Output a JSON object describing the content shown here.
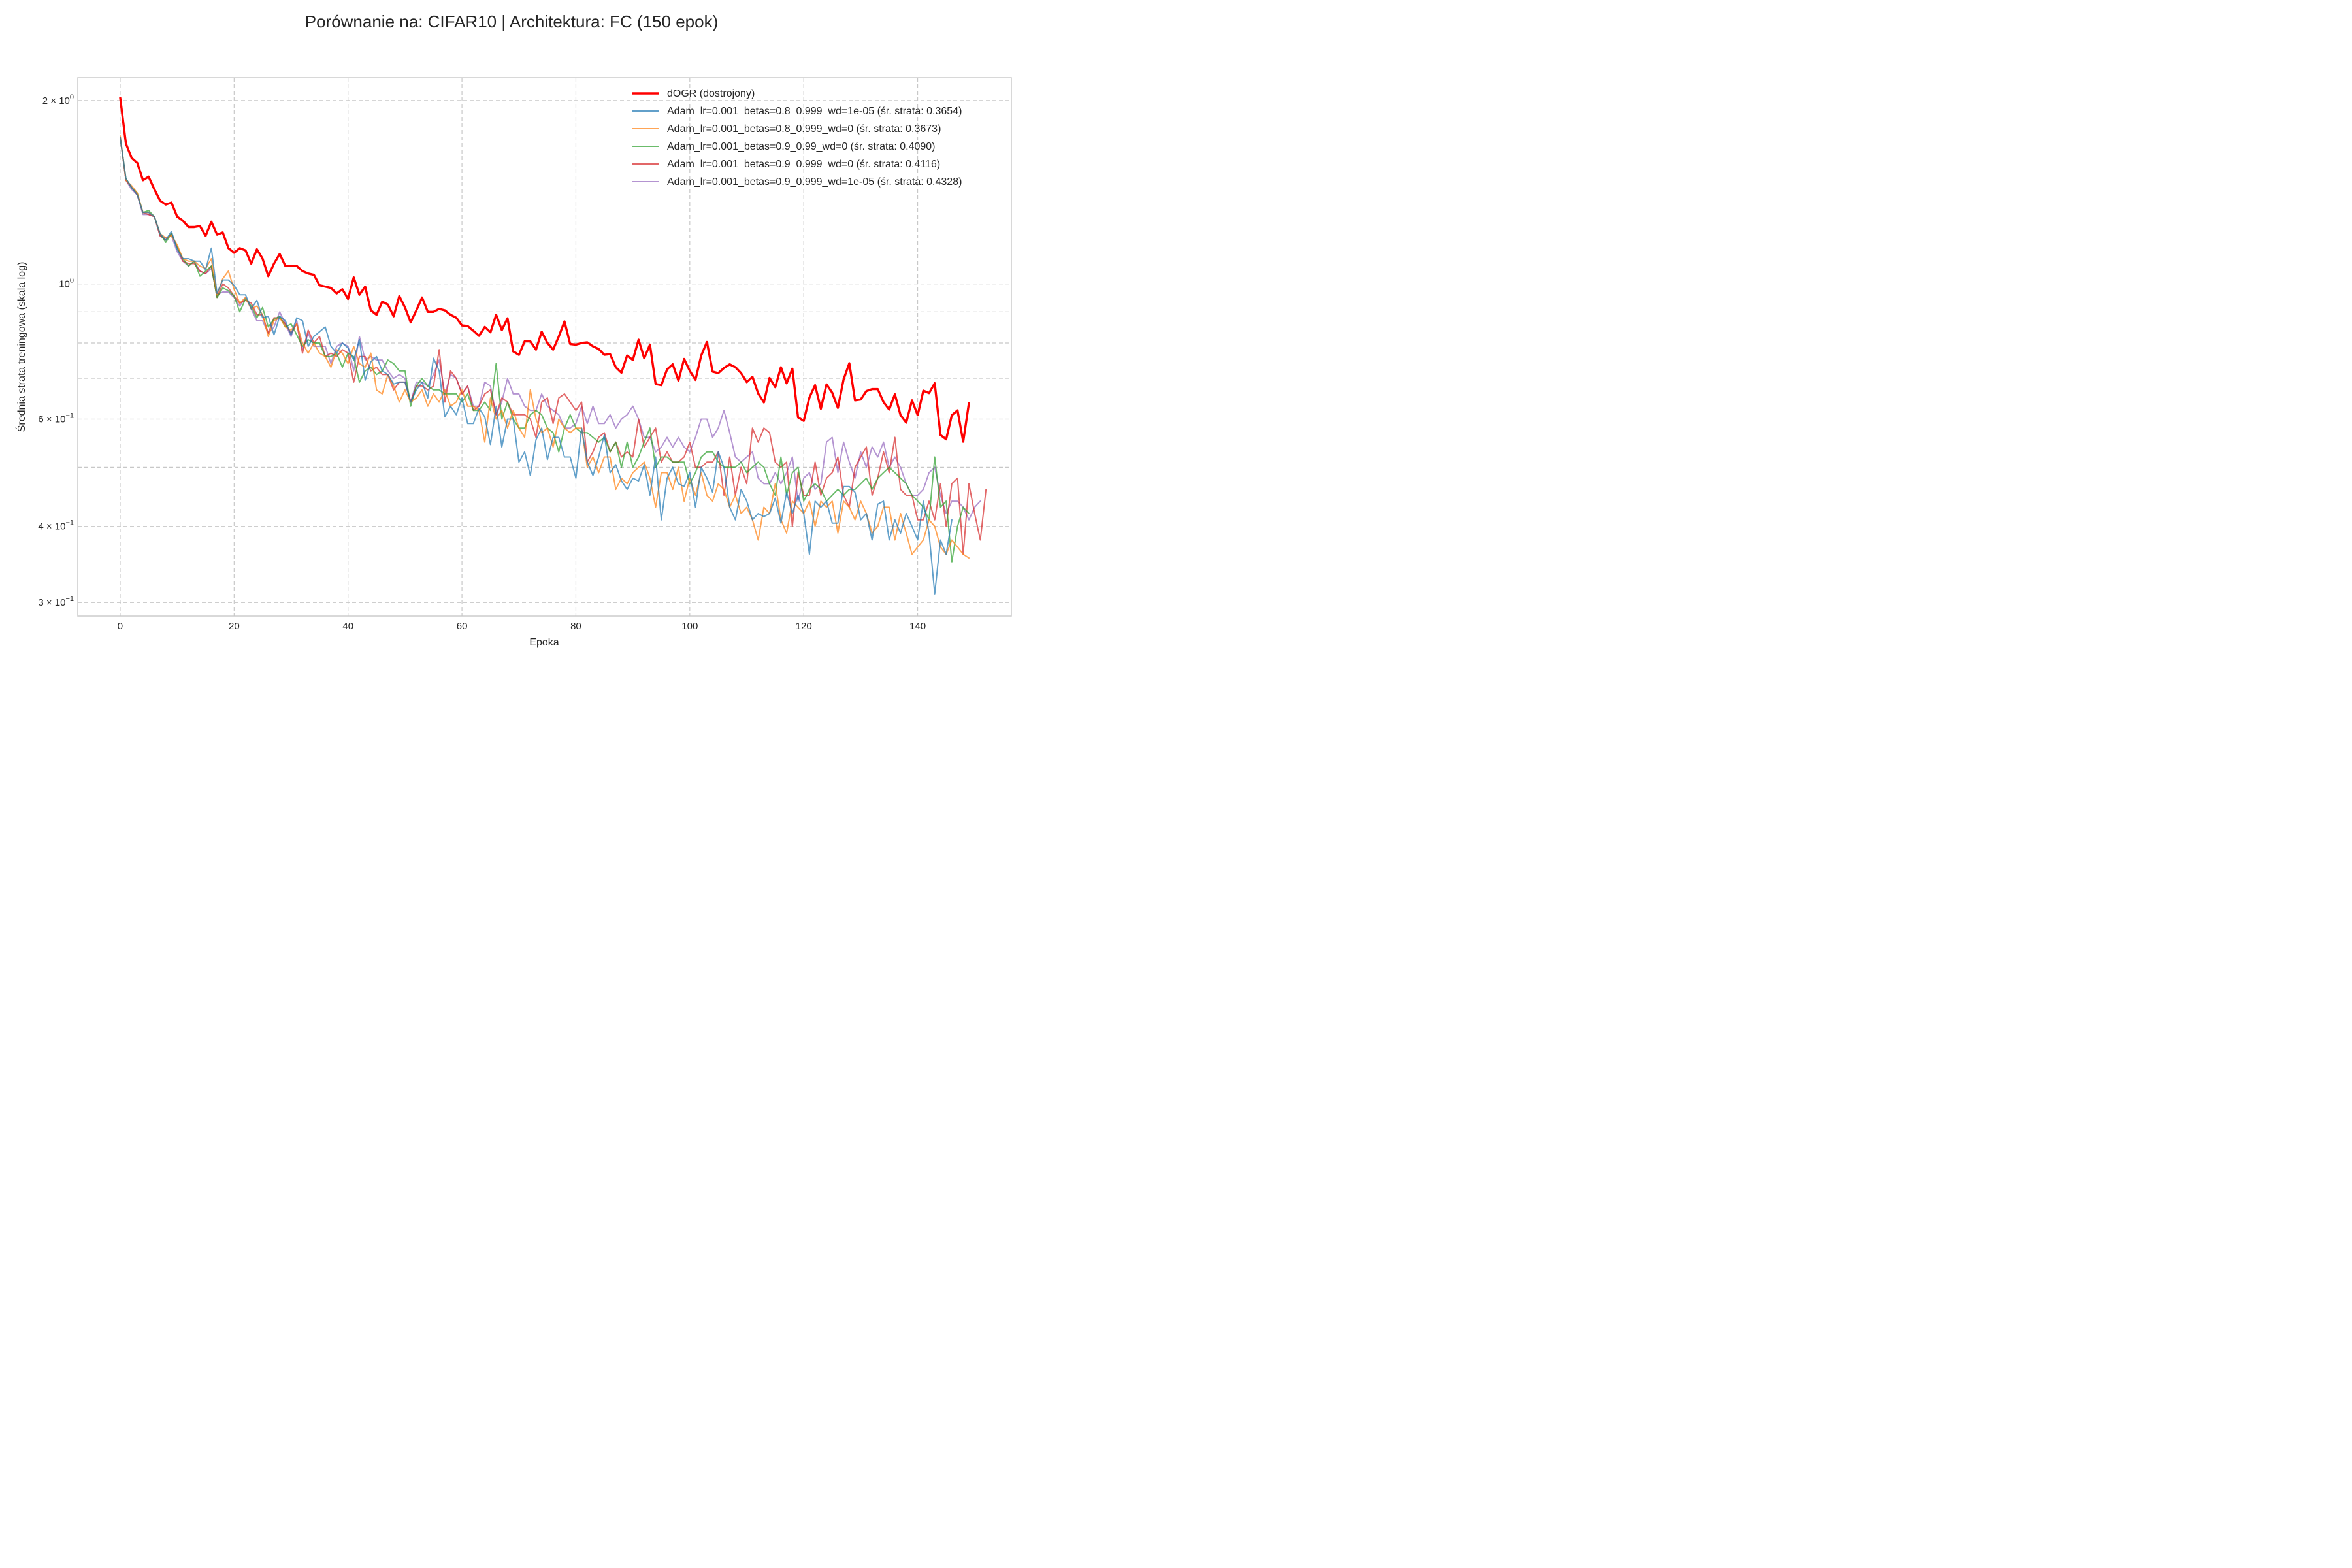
{
  "chart_data": {
    "type": "line",
    "title": "Porównanie na: CIFAR10 | Architektura: FC (150 epok)",
    "xlabel": "Epoka",
    "ylabel": "Średnia strata treningowa (skala log)",
    "yscale": "log",
    "xlim": [
      -7.45,
      156.45
    ],
    "ylim": [
      0.285,
      2.18
    ],
    "xticks": [
      0,
      20,
      40,
      60,
      80,
      100,
      120,
      140
    ],
    "xtick_labels": [
      "0",
      "20",
      "40",
      "60",
      "80",
      "100",
      "120",
      "140"
    ],
    "yticks_major": [
      1.0,
      2.0
    ],
    "ytick_major_labels": [
      {
        "base": "10",
        "exp": "0",
        "prefix": ""
      },
      {
        "base": "10",
        "exp": "0",
        "prefix": "2 × "
      }
    ],
    "yticks_minor": [
      0.3,
      0.4,
      0.5,
      0.6,
      0.7,
      0.8,
      0.9
    ],
    "ytick_minor_labels": [
      {
        "value": 0.3,
        "prefix": "3 × ",
        "base": "10",
        "exp": "−1"
      },
      {
        "value": 0.4,
        "prefix": "4 × ",
        "base": "10",
        "exp": "−1"
      },
      {
        "value": 0.6,
        "prefix": "6 × ",
        "base": "10",
        "exp": "−1"
      }
    ],
    "grid": true,
    "legend_position": "top-right",
    "series": [
      {
        "name": "dOGR (dostrojony)",
        "color": "#ff0000",
        "width": 3.4,
        "opacity": 1,
        "x_start": 0,
        "values": [
          2.02,
          1.7,
          1.61,
          1.58,
          1.48,
          1.5,
          1.43,
          1.37,
          1.35,
          1.36,
          1.29,
          1.27,
          1.24,
          1.24,
          1.245,
          1.2,
          1.265,
          1.205,
          1.215,
          1.145,
          1.125,
          1.145,
          1.135,
          1.08,
          1.14,
          1.1,
          1.03,
          1.08,
          1.12,
          1.07,
          1.07,
          1.07,
          1.05,
          1.04,
          1.035,
          0.995,
          0.99,
          0.985,
          0.965,
          0.98,
          0.945,
          1.025,
          0.96,
          0.99,
          0.905,
          0.89,
          0.935,
          0.925,
          0.885,
          0.955,
          0.915,
          0.865,
          0.905,
          0.95,
          0.9,
          0.9,
          0.91,
          0.905,
          0.89,
          0.88,
          0.855,
          0.853,
          0.838,
          0.822,
          0.85,
          0.833,
          0.89,
          0.84,
          0.878,
          0.775,
          0.765,
          0.805,
          0.805,
          0.78,
          0.835,
          0.8,
          0.78,
          0.82,
          0.868,
          0.797,
          0.795,
          0.8,
          0.802,
          0.79,
          0.782,
          0.765,
          0.767,
          0.73,
          0.715,
          0.763,
          0.75,
          0.81,
          0.755,
          0.795,
          0.685,
          0.682,
          0.724,
          0.738,
          0.694,
          0.753,
          0.72,
          0.696,
          0.763,
          0.803,
          0.718,
          0.714,
          0.728,
          0.738,
          0.73,
          0.714,
          0.69,
          0.704,
          0.661,
          0.639,
          0.701,
          0.677,
          0.73,
          0.687,
          0.726,
          0.604,
          0.596,
          0.651,
          0.682,
          0.624,
          0.684,
          0.663,
          0.626,
          0.697,
          0.741,
          0.644,
          0.646,
          0.667,
          0.672,
          0.672,
          0.64,
          0.622,
          0.659,
          0.609,
          0.592,
          0.644,
          0.609,
          0.668,
          0.662,
          0.687,
          0.565,
          0.556,
          0.609,
          0.62,
          0.551,
          0.637
        ]
      },
      {
        "name": "Adam_lr=0.001_betas=0.8_0.999_wd=1e-05 (śr. strata: 0.3654)",
        "color": "#1f77b4",
        "width": 2.0,
        "opacity": 0.7,
        "x_start": 0,
        "values": [
          1.74,
          1.49,
          1.44,
          1.4,
          1.31,
          1.31,
          1.29,
          1.21,
          1.18,
          1.22,
          1.14,
          1.1,
          1.1,
          1.09,
          1.09,
          1.055,
          1.145,
          0.965,
          1.015,
          1.015,
          0.995,
          0.96,
          0.96,
          0.91,
          0.94,
          0.88,
          0.885,
          0.825,
          0.885,
          0.87,
          0.825,
          0.88,
          0.87,
          0.79,
          0.82,
          0.835,
          0.85,
          0.79,
          0.77,
          0.8,
          0.785,
          0.75,
          0.81,
          0.695,
          0.745,
          0.76,
          0.72,
          0.71,
          0.685,
          0.69,
          0.69,
          0.64,
          0.67,
          0.69,
          0.65,
          0.755,
          0.72,
          0.605,
          0.63,
          0.61,
          0.65,
          0.59,
          0.59,
          0.625,
          0.605,
          0.545,
          0.63,
          0.54,
          0.6,
          0.6,
          0.51,
          0.53,
          0.485,
          0.555,
          0.58,
          0.515,
          0.56,
          0.56,
          0.52,
          0.52,
          0.48,
          0.58,
          0.51,
          0.485,
          0.52,
          0.565,
          0.49,
          0.505,
          0.475,
          0.46,
          0.48,
          0.475,
          0.505,
          0.45,
          0.52,
          0.41,
          0.48,
          0.5,
          0.47,
          0.465,
          0.49,
          0.43,
          0.5,
          0.48,
          0.455,
          0.53,
          0.5,
          0.43,
          0.41,
          0.46,
          0.44,
          0.41,
          0.42,
          0.415,
          0.42,
          0.445,
          0.405,
          0.455,
          0.42,
          0.45,
          0.42,
          0.36,
          0.44,
          0.43,
          0.44,
          0.405,
          0.405,
          0.465,
          0.465,
          0.455,
          0.41,
          0.42,
          0.38,
          0.435,
          0.44,
          0.38,
          0.41,
          0.39,
          0.42,
          0.4,
          0.38,
          0.44,
          0.39,
          0.31,
          0.38,
          0.36,
          0.41
        ]
      },
      {
        "name": "Adam_lr=0.001_betas=0.8_0.999_wd=0 (śr. strata: 0.3673)",
        "color": "#ff7f0e",
        "width": 2.0,
        "opacity": 0.7,
        "x_start": 0,
        "values": [
          1.75,
          1.48,
          1.45,
          1.41,
          1.31,
          1.31,
          1.29,
          1.21,
          1.19,
          1.2,
          1.16,
          1.1,
          1.09,
          1.09,
          1.07,
          1.06,
          1.1,
          0.96,
          1.02,
          1.05,
          0.98,
          0.93,
          0.95,
          0.91,
          0.92,
          0.89,
          0.82,
          0.87,
          0.88,
          0.85,
          0.84,
          0.86,
          0.8,
          0.77,
          0.8,
          0.77,
          0.76,
          0.73,
          0.78,
          0.77,
          0.74,
          0.79,
          0.74,
          0.73,
          0.77,
          0.67,
          0.66,
          0.71,
          0.68,
          0.64,
          0.67,
          0.64,
          0.65,
          0.67,
          0.63,
          0.66,
          0.64,
          0.67,
          0.63,
          0.64,
          0.67,
          0.63,
          0.63,
          0.62,
          0.55,
          0.65,
          0.6,
          0.62,
          0.58,
          0.62,
          0.58,
          0.56,
          0.67,
          0.6,
          0.57,
          0.58,
          0.54,
          0.6,
          0.58,
          0.57,
          0.58,
          0.58,
          0.5,
          0.52,
          0.49,
          0.52,
          0.52,
          0.46,
          0.48,
          0.47,
          0.49,
          0.5,
          0.51,
          0.48,
          0.43,
          0.49,
          0.49,
          0.46,
          0.5,
          0.44,
          0.48,
          0.45,
          0.49,
          0.45,
          0.44,
          0.47,
          0.46,
          0.43,
          0.45,
          0.42,
          0.43,
          0.41,
          0.38,
          0.43,
          0.42,
          0.47,
          0.41,
          0.39,
          0.44,
          0.43,
          0.42,
          0.44,
          0.4,
          0.44,
          0.43,
          0.44,
          0.39,
          0.44,
          0.43,
          0.41,
          0.44,
          0.42,
          0.39,
          0.4,
          0.43,
          0.43,
          0.38,
          0.42,
          0.39,
          0.36,
          0.37,
          0.38,
          0.41,
          0.4,
          0.37,
          0.36,
          0.38,
          0.37,
          0.36,
          0.355
        ]
      },
      {
        "name": "Adam_lr=0.001_betas=0.9_0.99_wd=0 (śr. strata: 0.4090)",
        "color": "#2ca02c",
        "width": 2.0,
        "opacity": 0.7,
        "x_start": 0,
        "values": [
          1.74,
          1.49,
          1.44,
          1.41,
          1.31,
          1.32,
          1.29,
          1.21,
          1.17,
          1.21,
          1.15,
          1.1,
          1.07,
          1.09,
          1.03,
          1.05,
          1.07,
          0.95,
          0.985,
          0.975,
          0.955,
          0.9,
          0.945,
          0.92,
          0.88,
          0.915,
          0.85,
          0.875,
          0.885,
          0.85,
          0.86,
          0.825,
          0.79,
          0.81,
          0.8,
          0.8,
          0.76,
          0.76,
          0.77,
          0.73,
          0.77,
          0.76,
          0.69,
          0.72,
          0.73,
          0.71,
          0.72,
          0.75,
          0.74,
          0.72,
          0.72,
          0.63,
          0.68,
          0.7,
          0.68,
          0.67,
          0.67,
          0.66,
          0.66,
          0.66,
          0.64,
          0.66,
          0.62,
          0.62,
          0.64,
          0.62,
          0.74,
          0.6,
          0.64,
          0.6,
          0.58,
          0.58,
          0.61,
          0.62,
          0.61,
          0.58,
          0.57,
          0.53,
          0.58,
          0.61,
          0.58,
          0.57,
          0.57,
          0.56,
          0.55,
          0.56,
          0.53,
          0.55,
          0.5,
          0.55,
          0.5,
          0.52,
          0.55,
          0.58,
          0.5,
          0.52,
          0.52,
          0.51,
          0.51,
          0.51,
          0.47,
          0.49,
          0.52,
          0.53,
          0.53,
          0.51,
          0.5,
          0.5,
          0.5,
          0.51,
          0.49,
          0.5,
          0.51,
          0.5,
          0.47,
          0.45,
          0.52,
          0.45,
          0.49,
          0.5,
          0.44,
          0.46,
          0.47,
          0.46,
          0.44,
          0.45,
          0.46,
          0.45,
          0.46,
          0.46,
          0.47,
          0.48,
          0.46,
          0.48,
          0.49,
          0.5,
          0.49,
          0.48,
          0.47,
          0.45,
          0.44,
          0.43,
          0.41,
          0.52,
          0.43,
          0.44,
          0.35,
          0.4,
          0.43,
          0.42
        ]
      },
      {
        "name": "Adam_lr=0.001_betas=0.9_0.999_wd=0 (śr. strata: 0.4116)",
        "color": "#d62728",
        "width": 2.0,
        "opacity": 0.7,
        "x_start": 0,
        "values": [
          1.74,
          1.48,
          1.44,
          1.4,
          1.31,
          1.3,
          1.29,
          1.2,
          1.18,
          1.21,
          1.15,
          1.09,
          1.08,
          1.08,
          1.05,
          1.04,
          1.07,
          0.95,
          1.0,
          0.985,
          0.955,
          0.93,
          0.94,
          0.93,
          0.89,
          0.89,
          0.83,
          0.88,
          0.88,
          0.86,
          0.83,
          0.86,
          0.77,
          0.84,
          0.8,
          0.82,
          0.76,
          0.77,
          0.76,
          0.78,
          0.77,
          0.69,
          0.76,
          0.76,
          0.72,
          0.73,
          0.71,
          0.71,
          0.67,
          0.69,
          0.69,
          0.64,
          0.68,
          0.68,
          0.67,
          0.68,
          0.78,
          0.64,
          0.72,
          0.7,
          0.66,
          0.68,
          0.62,
          0.63,
          0.66,
          0.67,
          0.61,
          0.65,
          0.64,
          0.61,
          0.61,
          0.61,
          0.6,
          0.56,
          0.64,
          0.65,
          0.59,
          0.65,
          0.66,
          0.64,
          0.62,
          0.64,
          0.51,
          0.53,
          0.56,
          0.57,
          0.53,
          0.55,
          0.52,
          0.53,
          0.52,
          0.6,
          0.54,
          0.56,
          0.58,
          0.51,
          0.53,
          0.51,
          0.51,
          0.52,
          0.55,
          0.5,
          0.5,
          0.51,
          0.51,
          0.53,
          0.45,
          0.52,
          0.45,
          0.5,
          0.47,
          0.58,
          0.55,
          0.58,
          0.57,
          0.51,
          0.5,
          0.51,
          0.4,
          0.49,
          0.45,
          0.45,
          0.51,
          0.45,
          0.48,
          0.49,
          0.52,
          0.45,
          0.43,
          0.5,
          0.52,
          0.54,
          0.45,
          0.48,
          0.53,
          0.49,
          0.56,
          0.46,
          0.45,
          0.45,
          0.41,
          0.41,
          0.44,
          0.41,
          0.47,
          0.4,
          0.47,
          0.48,
          0.36,
          0.47,
          0.42,
          0.38,
          0.46
        ]
      },
      {
        "name": "Adam_lr=0.001_betas=0.9_0.999_wd=1e-05 (śr. strata: 0.4328)",
        "color": "#9467bd",
        "width": 2.0,
        "opacity": 0.7,
        "x_start": 0,
        "values": [
          1.74,
          1.48,
          1.43,
          1.4,
          1.3,
          1.3,
          1.29,
          1.2,
          1.19,
          1.2,
          1.13,
          1.09,
          1.07,
          1.09,
          1.05,
          1.04,
          1.06,
          0.96,
          0.97,
          0.97,
          0.95,
          0.92,
          0.95,
          0.91,
          0.87,
          0.87,
          0.83,
          0.85,
          0.9,
          0.86,
          0.82,
          0.87,
          0.78,
          0.83,
          0.79,
          0.79,
          0.79,
          0.74,
          0.79,
          0.8,
          0.79,
          0.72,
          0.82,
          0.75,
          0.76,
          0.75,
          0.75,
          0.72,
          0.7,
          0.71,
          0.7,
          0.64,
          0.69,
          0.69,
          0.68,
          0.71,
          0.75,
          0.66,
          0.71,
          0.7,
          0.66,
          0.68,
          0.63,
          0.63,
          0.69,
          0.68,
          0.61,
          0.64,
          0.7,
          0.66,
          0.66,
          0.63,
          0.62,
          0.62,
          0.66,
          0.63,
          0.62,
          0.61,
          0.58,
          0.58,
          0.59,
          0.63,
          0.59,
          0.63,
          0.59,
          0.59,
          0.61,
          0.58,
          0.6,
          0.61,
          0.63,
          0.6,
          0.56,
          0.56,
          0.53,
          0.54,
          0.56,
          0.54,
          0.56,
          0.54,
          0.53,
          0.56,
          0.6,
          0.6,
          0.56,
          0.58,
          0.62,
          0.57,
          0.52,
          0.51,
          0.52,
          0.53,
          0.48,
          0.47,
          0.47,
          0.49,
          0.47,
          0.49,
          0.52,
          0.44,
          0.48,
          0.49,
          0.46,
          0.47,
          0.55,
          0.56,
          0.49,
          0.55,
          0.51,
          0.48,
          0.53,
          0.5,
          0.54,
          0.52,
          0.55,
          0.5,
          0.52,
          0.5,
          0.47,
          0.45,
          0.45,
          0.46,
          0.49,
          0.5,
          0.45,
          0.42,
          0.44,
          0.44,
          0.43,
          0.41,
          0.43,
          0.44
        ]
      }
    ]
  }
}
